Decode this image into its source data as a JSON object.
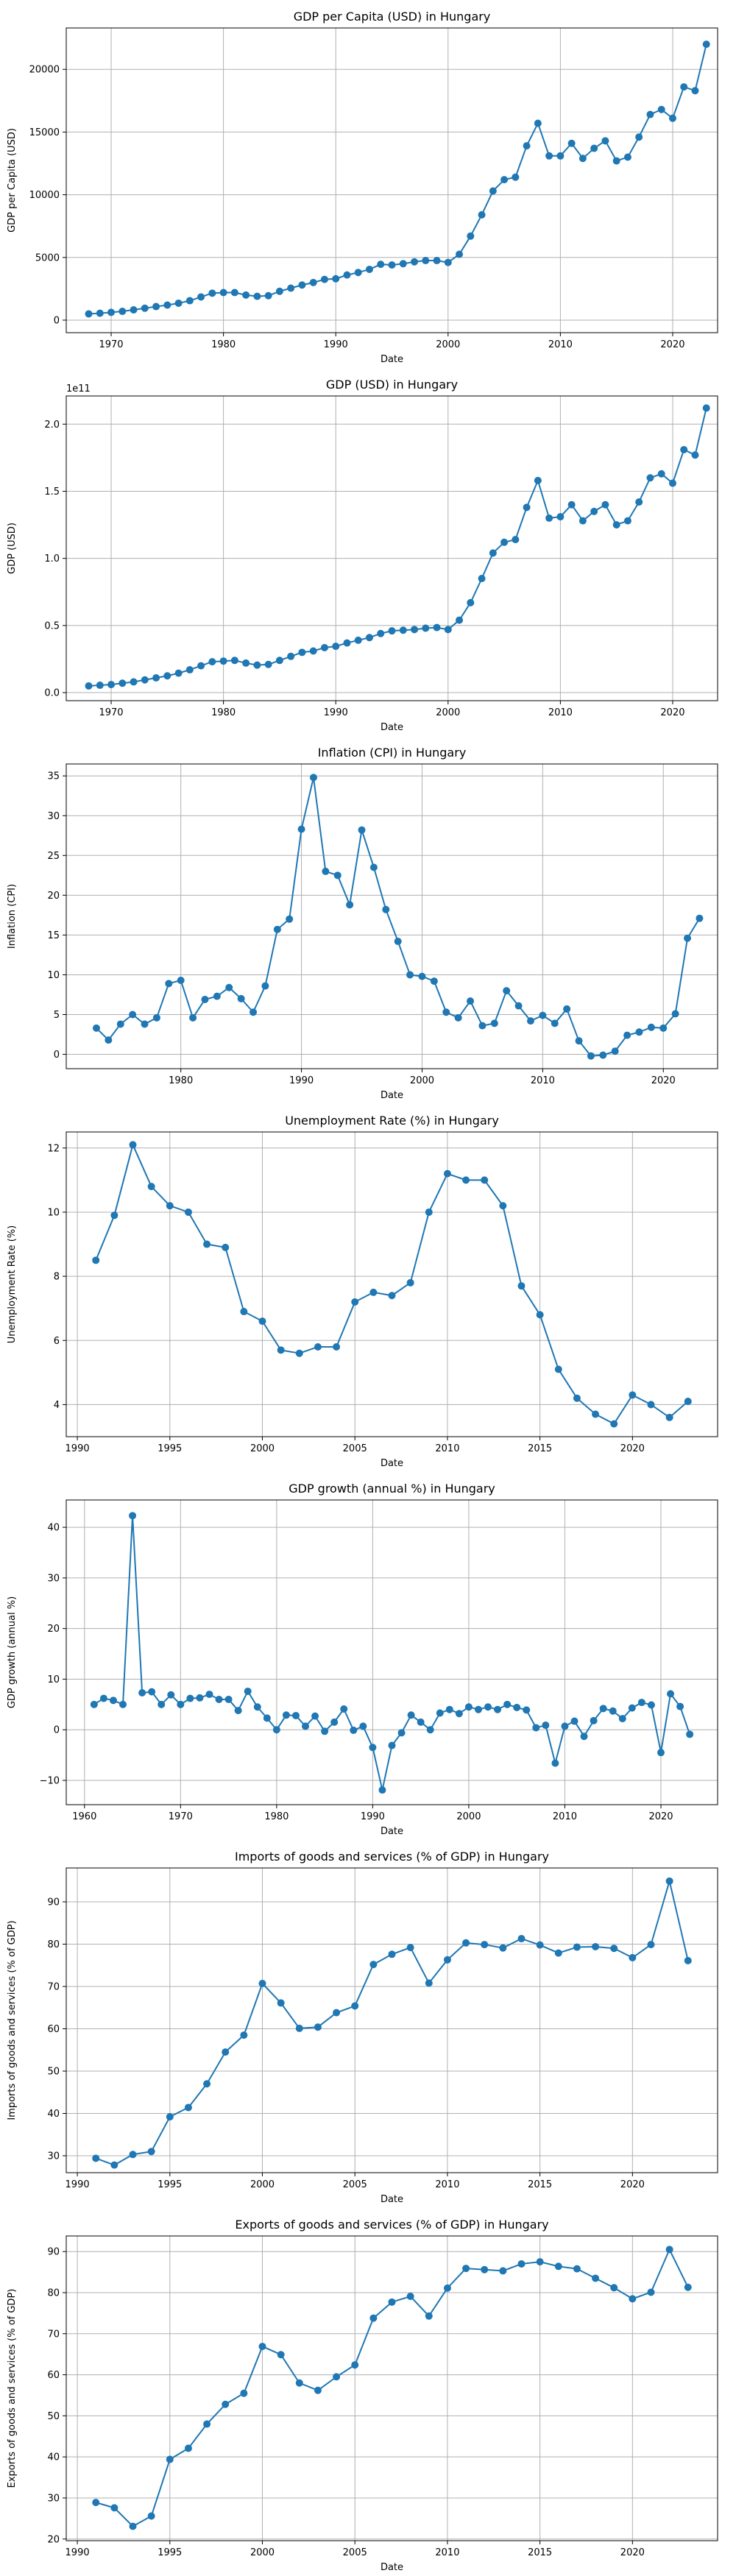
{
  "figure": {
    "line_color": "#1f77b4",
    "grid_color": "#b0b0b0",
    "axis_color": "#000000"
  },
  "chart_data": [
    {
      "type": "line",
      "title": "GDP per Capita (USD) in Hungary",
      "xlabel": "Date",
      "ylabel": "GDP per Capita (USD)",
      "xlim": [
        1966,
        2024
      ],
      "ylim": [
        -1000,
        23300
      ],
      "xticks": [
        1970,
        1980,
        1990,
        2000,
        2010,
        2020
      ],
      "yticks": [
        0,
        5000,
        10000,
        15000,
        20000
      ],
      "ytick_labels": [
        "0",
        "5000",
        "10000",
        "15000",
        "20000"
      ],
      "grid": true,
      "x": [
        1968,
        1969,
        1970,
        1971,
        1972,
        1973,
        1974,
        1975,
        1976,
        1977,
        1978,
        1979,
        1980,
        1981,
        1982,
        1983,
        1984,
        1985,
        1986,
        1987,
        1988,
        1989,
        1990,
        1991,
        1992,
        1993,
        1994,
        1995,
        1996,
        1997,
        1998,
        1999,
        2000,
        2001,
        2002,
        2003,
        2004,
        2005,
        2006,
        2007,
        2008,
        2009,
        2010,
        2011,
        2012,
        2013,
        2014,
        2015,
        2016,
        2017,
        2018,
        2019,
        2020,
        2021,
        2022,
        2023
      ],
      "y": [
        500,
        550,
        620,
        700,
        820,
        950,
        1080,
        1200,
        1350,
        1550,
        1850,
        2150,
        2200,
        2200,
        2000,
        1900,
        1950,
        2300,
        2550,
        2800,
        3000,
        3250,
        3300,
        3600,
        3800,
        4050,
        4450,
        4400,
        4500,
        4650,
        4750,
        4750,
        4600,
        5250,
        6700,
        8400,
        10300,
        11200,
        11400,
        13900,
        15700,
        13100,
        13100,
        14100,
        12900,
        13700,
        14300,
        12700,
        13000,
        14600,
        16400,
        16800,
        16100,
        18600,
        18300,
        22000
      ]
    },
    {
      "type": "line",
      "title": "GDP (USD) in Hungary",
      "xlabel": "Date",
      "ylabel": "GDP (USD)",
      "offset_label": "1e11",
      "xlim": [
        1966,
        2024
      ],
      "ylim": [
        -0.06,
        2.21
      ],
      "xticks": [
        1970,
        1980,
        1990,
        2000,
        2010,
        2020
      ],
      "yticks": [
        0.0,
        0.5,
        1.0,
        1.5,
        2.0
      ],
      "ytick_labels": [
        "0.0",
        "0.5",
        "1.0",
        "1.5",
        "2.0"
      ],
      "grid": true,
      "x": [
        1968,
        1969,
        1970,
        1971,
        1972,
        1973,
        1974,
        1975,
        1976,
        1977,
        1978,
        1979,
        1980,
        1981,
        1982,
        1983,
        1984,
        1985,
        1986,
        1987,
        1988,
        1989,
        1990,
        1991,
        1992,
        1993,
        1994,
        1995,
        1996,
        1997,
        1998,
        1999,
        2000,
        2001,
        2002,
        2003,
        2004,
        2005,
        2006,
        2007,
        2008,
        2009,
        2010,
        2011,
        2012,
        2013,
        2014,
        2015,
        2016,
        2017,
        2018,
        2019,
        2020,
        2021,
        2022,
        2023
      ],
      "y": [
        0.05,
        0.055,
        0.06,
        0.07,
        0.08,
        0.095,
        0.11,
        0.125,
        0.145,
        0.17,
        0.2,
        0.23,
        0.235,
        0.24,
        0.22,
        0.205,
        0.21,
        0.24,
        0.27,
        0.3,
        0.31,
        0.335,
        0.345,
        0.37,
        0.39,
        0.41,
        0.44,
        0.46,
        0.465,
        0.47,
        0.48,
        0.485,
        0.47,
        0.54,
        0.67,
        0.85,
        1.04,
        1.12,
        1.14,
        1.38,
        1.58,
        1.3,
        1.31,
        1.4,
        1.28,
        1.35,
        1.4,
        1.25,
        1.28,
        1.42,
        1.6,
        1.63,
        1.56,
        1.81,
        1.77,
        2.12
      ]
    },
    {
      "type": "line",
      "title": "Inflation (CPI) in Hungary",
      "xlabel": "Date",
      "ylabel": "Inflation (CPI)",
      "xlim": [
        1970.5,
        2024.5
      ],
      "ylim": [
        -1.8,
        36.5
      ],
      "xticks": [
        1980,
        1990,
        2000,
        2010,
        2020
      ],
      "yticks": [
        0,
        5,
        10,
        15,
        20,
        25,
        30,
        35
      ],
      "ytick_labels": [
        "0",
        "5",
        "10",
        "15",
        "20",
        "25",
        "30",
        "35"
      ],
      "grid": true,
      "x": [
        1973,
        1974,
        1975,
        1976,
        1977,
        1978,
        1979,
        1980,
        1981,
        1982,
        1983,
        1984,
        1985,
        1986,
        1987,
        1988,
        1989,
        1990,
        1991,
        1992,
        1993,
        1994,
        1995,
        1996,
        1997,
        1998,
        1999,
        2000,
        2001,
        2002,
        2003,
        2004,
        2005,
        2006,
        2007,
        2008,
        2009,
        2010,
        2011,
        2012,
        2013,
        2014,
        2015,
        2016,
        2017,
        2018,
        2019,
        2020,
        2021,
        2022,
        2023
      ],
      "y": [
        3.3,
        1.8,
        3.8,
        5.0,
        3.8,
        4.6,
        8.9,
        9.3,
        4.6,
        6.9,
        7.3,
        8.4,
        7.0,
        5.3,
        8.6,
        15.7,
        17.0,
        28.3,
        34.8,
        23.0,
        22.5,
        18.8,
        28.2,
        23.5,
        18.2,
        14.2,
        10.0,
        9.8,
        9.2,
        5.3,
        4.6,
        6.7,
        3.6,
        3.9,
        8.0,
        6.1,
        4.2,
        4.9,
        3.9,
        5.7,
        1.7,
        -0.2,
        -0.1,
        0.4,
        2.4,
        2.8,
        3.4,
        3.3,
        5.1,
        14.6,
        17.1
      ]
    },
    {
      "type": "line",
      "title": "Unemployment Rate (%) in Hungary",
      "xlabel": "Date",
      "ylabel": "Unemployment Rate (%)",
      "xlim": [
        1989.4,
        2024.6
      ],
      "ylim": [
        3.0,
        12.5
      ],
      "xticks": [
        1990,
        1995,
        2000,
        2005,
        2010,
        2015,
        2020
      ],
      "yticks": [
        4,
        6,
        8,
        10,
        12
      ],
      "ytick_labels": [
        "4",
        "6",
        "8",
        "10",
        "12"
      ],
      "grid": true,
      "x": [
        1991,
        1992,
        1993,
        1994,
        1995,
        1996,
        1997,
        1998,
        1999,
        2000,
        2001,
        2002,
        2003,
        2004,
        2005,
        2006,
        2007,
        2008,
        2009,
        2010,
        2011,
        2012,
        2013,
        2014,
        2015,
        2016,
        2017,
        2018,
        2019,
        2020,
        2021,
        2022,
        2023
      ],
      "y": [
        8.5,
        9.9,
        12.1,
        10.8,
        10.2,
        10.0,
        9.0,
        8.9,
        6.9,
        6.6,
        5.7,
        5.6,
        5.8,
        5.8,
        7.2,
        7.5,
        7.4,
        7.8,
        10.0,
        11.2,
        11.0,
        11.0,
        10.2,
        7.7,
        6.8,
        5.1,
        4.2,
        3.7,
        3.4,
        4.3,
        4.0,
        3.6,
        4.1
      ]
    },
    {
      "type": "line",
      "title": "GDP growth (annual %) in Hungary",
      "xlabel": "Date",
      "ylabel": "GDP growth (annual %)",
      "xlim": [
        1958.1,
        2025.9
      ],
      "ylim": [
        -14.8,
        45.4
      ],
      "xticks": [
        1960,
        1970,
        1980,
        1990,
        2000,
        2010,
        2020
      ],
      "yticks": [
        -10,
        0,
        10,
        20,
        30,
        40
      ],
      "ytick_labels": [
        "−10",
        "0",
        "10",
        "20",
        "30",
        "40"
      ],
      "grid": true,
      "x": [
        1961,
        1962,
        1963,
        1964,
        1965,
        1966,
        1967,
        1968,
        1969,
        1970,
        1971,
        1972,
        1973,
        1974,
        1975,
        1976,
        1977,
        1978,
        1979,
        1980,
        1981,
        1982,
        1983,
        1984,
        1985,
        1986,
        1987,
        1988,
        1989,
        1990,
        1991,
        1992,
        1993,
        1994,
        1995,
        1996,
        1997,
        1998,
        1999,
        2000,
        2001,
        2002,
        2003,
        2004,
        2005,
        2006,
        2007,
        2008,
        2009,
        2010,
        2011,
        2012,
        2013,
        2014,
        2015,
        2016,
        2017,
        2018,
        2019,
        2020,
        2021,
        2022,
        2023
      ],
      "y": [
        5.0,
        6.2,
        5.8,
        5.0,
        42.3,
        7.3,
        7.5,
        5.0,
        6.9,
        5.0,
        6.2,
        6.3,
        7.0,
        6.0,
        6.0,
        3.8,
        7.6,
        4.5,
        2.3,
        0.0,
        2.9,
        2.8,
        0.7,
        2.7,
        -0.3,
        1.5,
        4.1,
        -0.1,
        0.7,
        -3.5,
        -11.9,
        -3.1,
        -0.6,
        2.9,
        1.5,
        0.0,
        3.3,
        4.0,
        3.2,
        4.5,
        4.0,
        4.5,
        4.0,
        5.0,
        4.4,
        3.9,
        0.4,
        0.9,
        -6.6,
        0.7,
        1.7,
        -1.3,
        1.8,
        4.2,
        3.7,
        2.2,
        4.3,
        5.4,
        4.9,
        -4.5,
        7.1,
        4.6,
        -0.9
      ]
    },
    {
      "type": "line",
      "title": "Imports of goods and services (% of GDP) in Hungary",
      "xlabel": "Date",
      "ylabel": "Imports of goods and services (% of GDP)",
      "xlim": [
        1989.4,
        2024.6
      ],
      "ylim": [
        26.0,
        98.0
      ],
      "xticks": [
        1990,
        1995,
        2000,
        2005,
        2010,
        2015,
        2020
      ],
      "yticks": [
        30,
        40,
        50,
        60,
        70,
        80,
        90
      ],
      "ytick_labels": [
        "30",
        "40",
        "50",
        "60",
        "70",
        "80",
        "90"
      ],
      "grid": true,
      "x": [
        1991,
        1992,
        1993,
        1994,
        1995,
        1996,
        1997,
        1998,
        1999,
        2000,
        2001,
        2002,
        2003,
        2004,
        2005,
        2006,
        2007,
        2008,
        2009,
        2010,
        2011,
        2012,
        2013,
        2014,
        2015,
        2016,
        2017,
        2018,
        2019,
        2020,
        2021,
        2022,
        2023
      ],
      "y": [
        29.4,
        27.8,
        30.3,
        31.0,
        39.2,
        41.4,
        47.0,
        54.5,
        58.5,
        70.7,
        66.1,
        60.1,
        60.4,
        63.8,
        65.4,
        75.2,
        77.6,
        79.2,
        70.8,
        76.3,
        80.3,
        79.9,
        79.1,
        81.3,
        79.8,
        77.9,
        79.3,
        79.4,
        79.0,
        76.8,
        79.9,
        94.9,
        76.1
      ]
    },
    {
      "type": "line",
      "title": "Exports of goods and services (% of GDP) in Hungary",
      "xlabel": "Date",
      "ylabel": "Exports of goods and services (% of GDP)",
      "xlim": [
        1989.4,
        2024.6
      ],
      "ylim": [
        19.6,
        93.8
      ],
      "xticks": [
        1990,
        1995,
        2000,
        2005,
        2010,
        2015,
        2020
      ],
      "yticks": [
        20,
        30,
        40,
        50,
        60,
        70,
        80,
        90
      ],
      "ytick_labels": [
        "20",
        "30",
        "40",
        "50",
        "60",
        "70",
        "80",
        "90"
      ],
      "grid": true,
      "x": [
        1991,
        1992,
        1993,
        1994,
        1995,
        1996,
        1997,
        1998,
        1999,
        2000,
        2001,
        2002,
        2003,
        2004,
        2005,
        2006,
        2007,
        2008,
        2009,
        2010,
        2011,
        2012,
        2013,
        2014,
        2015,
        2016,
        2017,
        2018,
        2019,
        2020,
        2021,
        2022,
        2023
      ],
      "y": [
        28.9,
        27.6,
        23.1,
        25.6,
        39.4,
        42.1,
        48.0,
        52.8,
        55.5,
        66.9,
        64.9,
        58.0,
        56.2,
        59.5,
        62.4,
        73.8,
        77.7,
        79.1,
        74.3,
        81.1,
        85.9,
        85.6,
        85.3,
        87.0,
        87.5,
        86.4,
        85.8,
        83.5,
        81.2,
        78.5,
        80.1,
        90.5,
        81.3
      ]
    }
  ]
}
